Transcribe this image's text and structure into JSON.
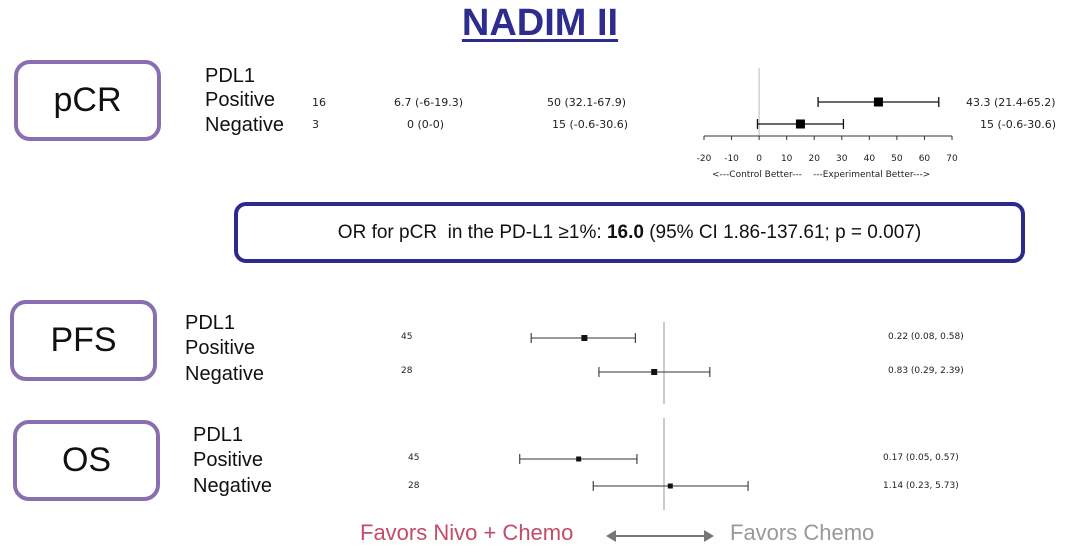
{
  "title": "NADIM II",
  "pcr": {
    "label": "pCR",
    "group": "PDL1",
    "rows": [
      {
        "name": "Positive",
        "n": "16",
        "control": "6.7 (-6-19.3)",
        "experimental": "50 (32.1-67.9)",
        "diff": "43.3 (21.4-65.2)"
      },
      {
        "name": "Negative",
        "n": "3",
        "control": "0 (0-0)",
        "experimental": "15 (-0.6-30.6)",
        "diff": "15 (-0.6-30.6)"
      }
    ],
    "axis_ticks": [
      "-20",
      "-10",
      "0",
      "10",
      "20",
      "30",
      "40",
      "50",
      "60",
      "70"
    ],
    "axis_caption_left": "<---Control Better---",
    "axis_caption_right": "---Experimental Better--->"
  },
  "or_box": {
    "prefix": "OR for pCR  in the PD-L1 ≥1%: ",
    "value": "16.0",
    "suffix": " (95% CI 1.86-137.61; p = 0.007)"
  },
  "pfs": {
    "label": "PFS",
    "group": "PDL1",
    "rows": [
      {
        "name": "Positive",
        "n": "45",
        "hr": "0.22 (0.08, 0.58)"
      },
      {
        "name": "Negative",
        "n": "28",
        "hr": "0.83 (0.29, 2.39)"
      }
    ]
  },
  "os": {
    "label": "OS",
    "group": "PDL1",
    "rows": [
      {
        "name": "Positive",
        "n": "45",
        "hr": "0.17 (0.05, 0.57)"
      },
      {
        "name": "Negative",
        "n": "28",
        "hr": "1.14 (0.23, 5.73)"
      }
    ]
  },
  "favors": {
    "left": "Favors Nivo + Chemo",
    "right": "Favors Chemo"
  },
  "colors": {
    "title": "#2f2c8f",
    "box_border": "#8a6fb0",
    "or_border": "#2e2a8c",
    "favors_left": "#c44b6a",
    "favors_right": "#999999"
  },
  "chart_data": [
    {
      "type": "forest",
      "panel": "pCR",
      "x_ticks": [
        -20,
        -10,
        0,
        10,
        20,
        30,
        40,
        50,
        60,
        70
      ],
      "xlim": [
        -20,
        70
      ],
      "reference": 0,
      "points": [
        {
          "label": "Positive",
          "estimate": 43.3,
          "low": 21.4,
          "high": 65.2
        },
        {
          "label": "Negative",
          "estimate": 15,
          "low": -0.6,
          "high": 30.6
        }
      ]
    },
    {
      "type": "forest",
      "panel": "PFS",
      "reference": 1,
      "scale": "log",
      "points": [
        {
          "label": "Positive",
          "estimate": 0.22,
          "low": 0.08,
          "high": 0.58
        },
        {
          "label": "Negative",
          "estimate": 0.83,
          "low": 0.29,
          "high": 2.39
        }
      ]
    },
    {
      "type": "forest",
      "panel": "OS",
      "reference": 1,
      "scale": "log",
      "points": [
        {
          "label": "Positive",
          "estimate": 0.17,
          "low": 0.05,
          "high": 0.57
        },
        {
          "label": "Negative",
          "estimate": 1.14,
          "low": 0.23,
          "high": 5.73
        }
      ]
    }
  ]
}
